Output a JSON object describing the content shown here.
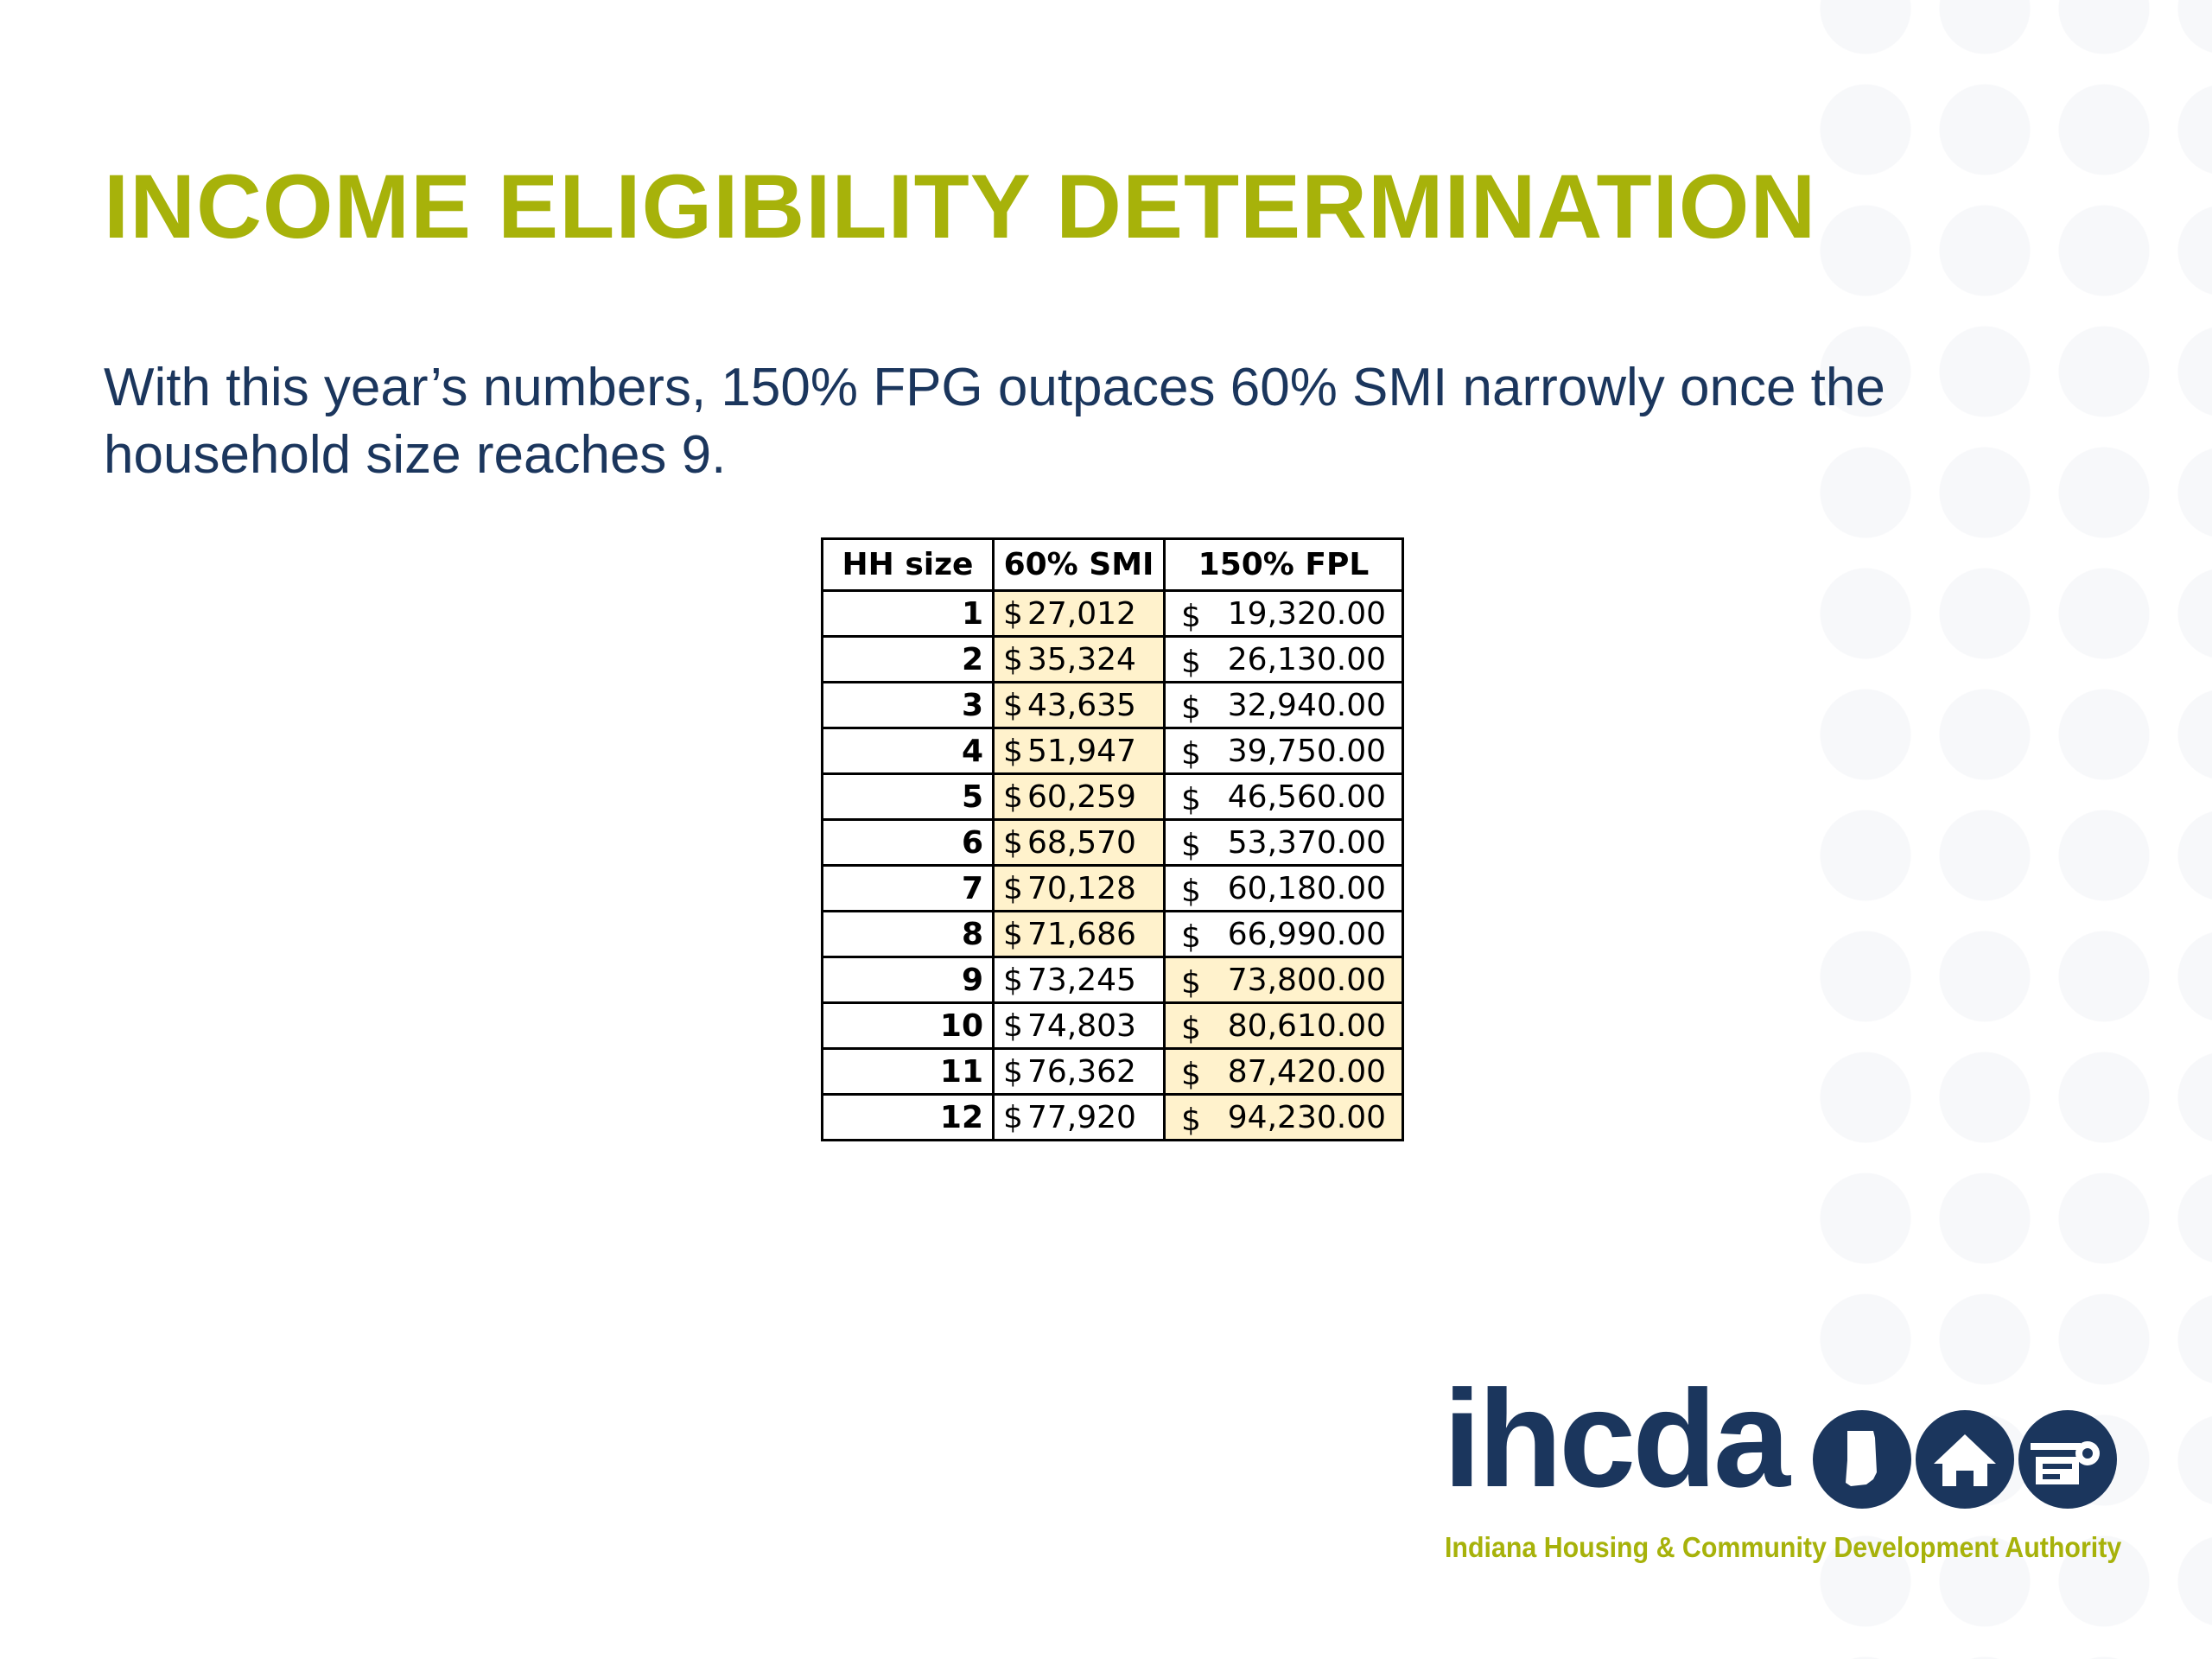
{
  "slide": {
    "title": "INCOME ELIGIBILITY DETERMINATION",
    "body": "With this year’s numbers, 150% FPG outpaces 60% SMI narrowly once the household size reaches 9."
  },
  "table": {
    "headers": [
      "HH size",
      "60% SMI",
      "150% FPL"
    ],
    "rows": [
      {
        "hh": "1",
        "smi": "27,012",
        "fpl": "19,320.00",
        "highlight": "smi"
      },
      {
        "hh": "2",
        "smi": "35,324",
        "fpl": "26,130.00",
        "highlight": "smi"
      },
      {
        "hh": "3",
        "smi": "43,635",
        "fpl": "32,940.00",
        "highlight": "smi"
      },
      {
        "hh": "4",
        "smi": "51,947",
        "fpl": "39,750.00",
        "highlight": "smi"
      },
      {
        "hh": "5",
        "smi": "60,259",
        "fpl": "46,560.00",
        "highlight": "smi"
      },
      {
        "hh": "6",
        "smi": "68,570",
        "fpl": "53,370.00",
        "highlight": "smi"
      },
      {
        "hh": "7",
        "smi": "70,128",
        "fpl": "60,180.00",
        "highlight": "smi"
      },
      {
        "hh": "8",
        "smi": "71,686",
        "fpl": "66,990.00",
        "highlight": "smi"
      },
      {
        "hh": "9",
        "smi": "73,245",
        "fpl": "73,800.00",
        "highlight": "fpl"
      },
      {
        "hh": "10",
        "smi": "74,803",
        "fpl": "80,610.00",
        "highlight": "fpl"
      },
      {
        "hh": "11",
        "smi": "76,362",
        "fpl": "87,420.00",
        "highlight": "fpl"
      },
      {
        "hh": "12",
        "smi": "77,920",
        "fpl": "94,230.00",
        "highlight": "fpl"
      }
    ],
    "currency_symbol": "$",
    "highlight_color": "#fff2cc"
  },
  "logo": {
    "wordmark": "ihcda",
    "tagline": "Indiana Housing & Community Development Authority",
    "icons": [
      "indiana-state-icon",
      "house-icon",
      "community-building-icon"
    ]
  },
  "colors": {
    "title": "#a7b20a",
    "text": "#1b365d",
    "logo_navy": "#1b365d",
    "background_dots": "#f7f8fa"
  }
}
